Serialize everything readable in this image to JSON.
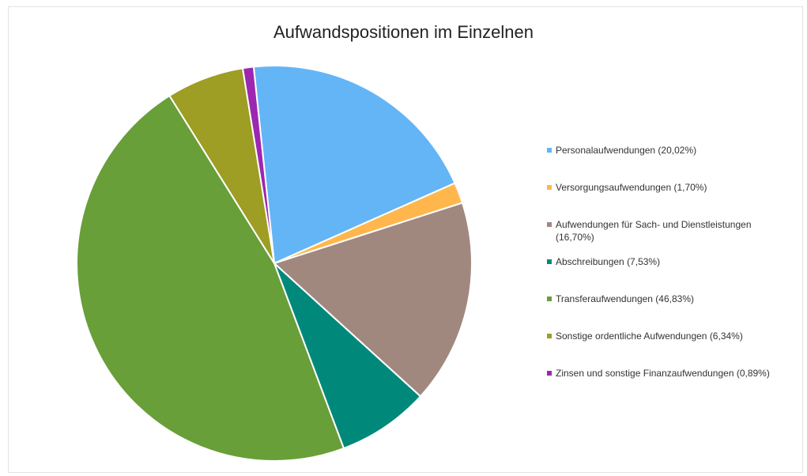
{
  "chart_data": {
    "type": "pie",
    "title": "Aufwandspositionen im Einzelnen",
    "legend_position": "right",
    "start_angle_deg": -6,
    "slices": [
      {
        "label": "Personalaufwendungen (20,02%)",
        "value": 20.02,
        "color": "#64b5f6"
      },
      {
        "label": "Versorgungsaufwendungen (1,70%)",
        "value": 1.7,
        "color": "#ffb74d"
      },
      {
        "label": "Aufwendungen für Sach- und Dienstleistungen (16,70%)",
        "value": 16.7,
        "color": "#a1887f"
      },
      {
        "label": "Abschreibungen (7,53%)",
        "value": 7.53,
        "color": "#00897b"
      },
      {
        "label": "Transferaufwendungen (46,83%)",
        "value": 46.83,
        "color": "#689f38"
      },
      {
        "label": "Sonstige ordentliche Aufwendungen (6,34%)",
        "value": 6.34,
        "color": "#9e9d24"
      },
      {
        "label": "Zinsen und sonstige Finanzaufwendungen (0,89%)",
        "value": 0.89,
        "color": "#9c27b0"
      }
    ]
  }
}
